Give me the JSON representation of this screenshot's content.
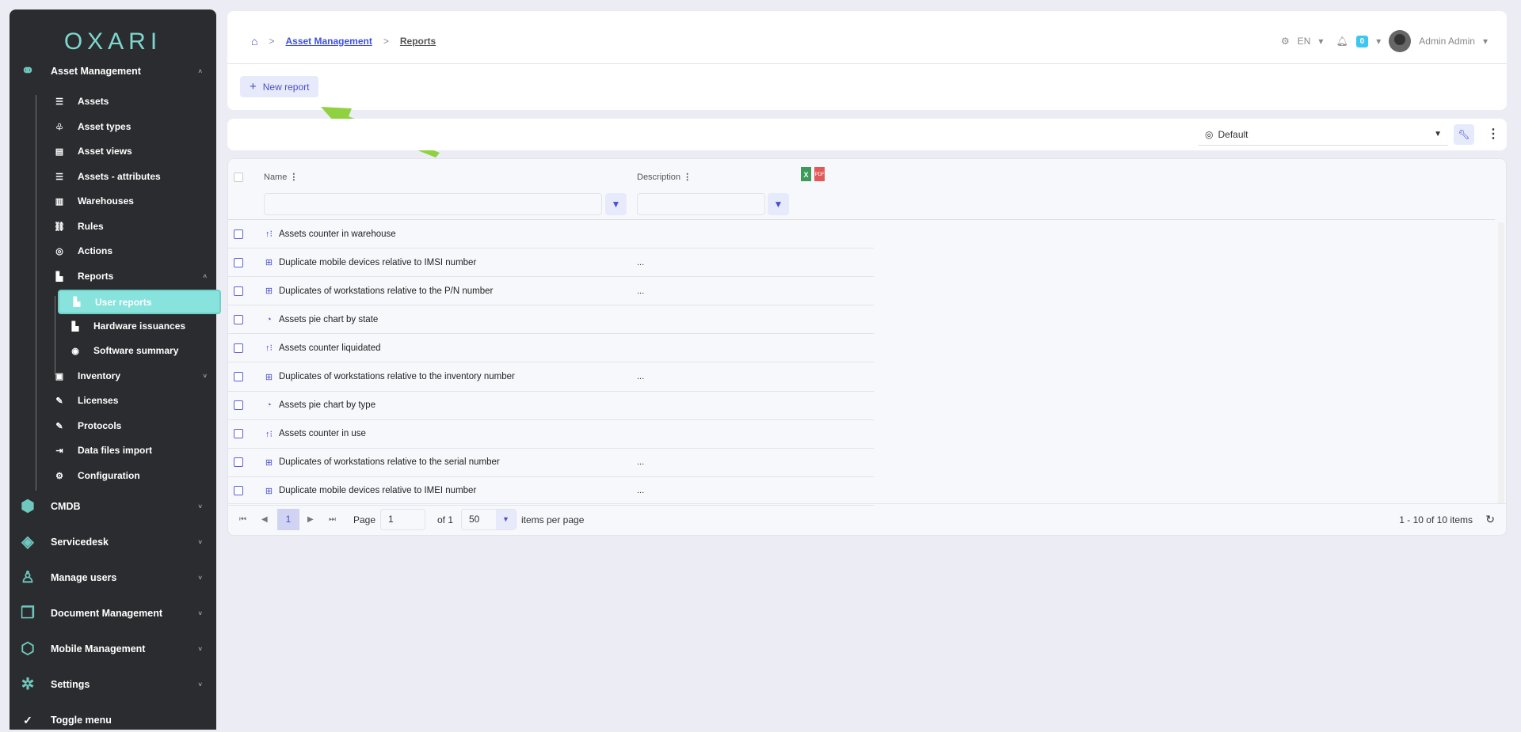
{
  "sidebar": {
    "logo": "OXARI",
    "groups": [
      {
        "label": "Asset Management",
        "icon": "asset-management-icon",
        "expanded": true
      },
      {
        "label": "CMDB",
        "icon": "cmdb-icon"
      },
      {
        "label": "Servicedesk",
        "icon": "servicedesk-icon"
      },
      {
        "label": "Manage users",
        "icon": "manage-users-icon"
      },
      {
        "label": "Document Management",
        "icon": "document-management-icon"
      },
      {
        "label": "Mobile Management",
        "icon": "mobile-management-icon"
      },
      {
        "label": "Settings",
        "icon": "settings-icon"
      }
    ],
    "items": [
      {
        "label": "Assets"
      },
      {
        "label": "Asset types"
      },
      {
        "label": "Asset views"
      },
      {
        "label": "Assets - attributes"
      },
      {
        "label": "Warehouses"
      },
      {
        "label": "Rules"
      },
      {
        "label": "Actions"
      },
      {
        "label": "Reports"
      },
      {
        "label": "Inventory"
      },
      {
        "label": "Licenses"
      },
      {
        "label": "Protocols"
      },
      {
        "label": "Data files import"
      },
      {
        "label": "Configuration"
      }
    ],
    "report_items": [
      {
        "label": "User reports",
        "active": true
      },
      {
        "label": "Hardware issuances"
      },
      {
        "label": "Software summary"
      }
    ],
    "toggle": "Toggle menu"
  },
  "header": {
    "breadcrumb": [
      "Asset Management",
      "Reports"
    ],
    "lang": "EN",
    "notifications": "0",
    "user": "Admin Admin",
    "new_report": "New report"
  },
  "toolbar": {
    "view": "Default"
  },
  "table": {
    "columns": [
      "Name",
      "Description"
    ],
    "rows": [
      {
        "name": "Assets counter in warehouse",
        "type": "counter",
        "desc": ""
      },
      {
        "name": "Duplicate mobile devices relative to IMSI number",
        "type": "table",
        "desc": "..."
      },
      {
        "name": "Duplicates of workstations relative to the P/N number",
        "type": "table",
        "desc": "..."
      },
      {
        "name": "Assets pie chart by state",
        "type": "pie",
        "desc": ""
      },
      {
        "name": "Assets counter liquidated",
        "type": "counter",
        "desc": ""
      },
      {
        "name": "Duplicates of workstations relative to the inventory number",
        "type": "table",
        "desc": "..."
      },
      {
        "name": "Assets pie chart by type",
        "type": "pie",
        "desc": ""
      },
      {
        "name": "Assets counter in use",
        "type": "counter",
        "desc": ""
      },
      {
        "name": "Duplicates of workstations relative to the serial number",
        "type": "table",
        "desc": "..."
      },
      {
        "name": "Duplicate mobile devices relative to IMEI number",
        "type": "table",
        "desc": "..."
      }
    ]
  },
  "pagination": {
    "current": "1",
    "page_label": "Page",
    "page_value": "1",
    "of": "of 1",
    "per_page": "50",
    "per_page_label": "items per page",
    "summary": "1 - 10 of 10 items"
  },
  "colors": {
    "accent": "#4a4fd0",
    "sidebar": "#2b2c2f",
    "active": "#88e3dd",
    "arrow": "#8fd13f"
  }
}
